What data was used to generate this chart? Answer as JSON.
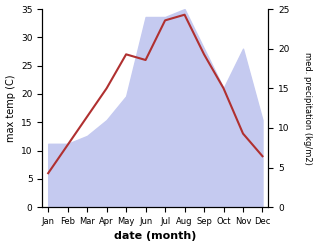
{
  "months": [
    "Jan",
    "Feb",
    "Mar",
    "Apr",
    "May",
    "Jun",
    "Jul",
    "Aug",
    "Sep",
    "Oct",
    "Nov",
    "Dec"
  ],
  "month_indices": [
    0,
    1,
    2,
    3,
    4,
    5,
    6,
    7,
    8,
    9,
    10,
    11
  ],
  "temperature": [
    6,
    11,
    16,
    21,
    27,
    26,
    33,
    34,
    27,
    21,
    13,
    9
  ],
  "precipitation": [
    8,
    8,
    9,
    11,
    14,
    24,
    24,
    25,
    20,
    15,
    20,
    11
  ],
  "temp_color": "#b03030",
  "precip_fill_color": "#c5caf0",
  "temp_ylim": [
    0,
    35
  ],
  "precip_ylim": [
    0,
    25
  ],
  "temp_yticks": [
    0,
    5,
    10,
    15,
    20,
    25,
    30,
    35
  ],
  "precip_yticks": [
    0,
    5,
    10,
    15,
    20,
    25
  ],
  "ylabel_left": "max temp (C)",
  "ylabel_right": "med. precipitation (kg/m2)",
  "xlabel": "date (month)",
  "background_color": "#ffffff"
}
